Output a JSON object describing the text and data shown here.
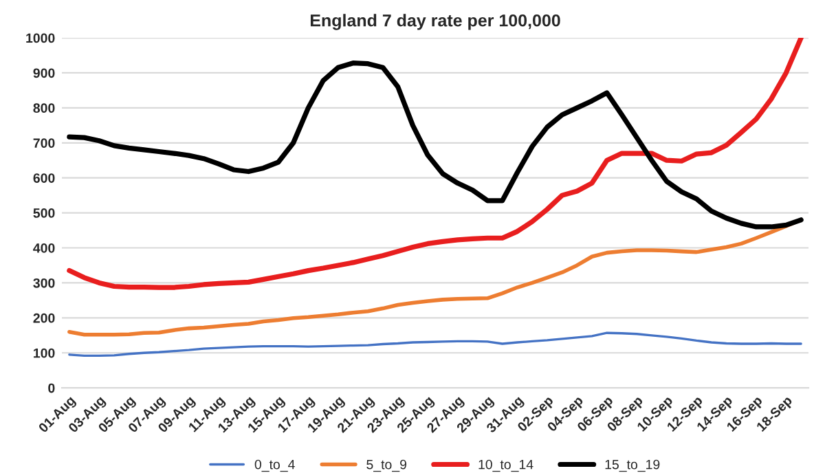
{
  "chart_data": {
    "type": "line",
    "title": "England 7 day rate per 100,000",
    "categories": [
      "01-Aug",
      null,
      "03-Aug",
      null,
      "05-Aug",
      null,
      "07-Aug",
      null,
      "09-Aug",
      null,
      "11-Aug",
      null,
      "13-Aug",
      null,
      "15-Aug",
      null,
      "17-Aug",
      null,
      "19-Aug",
      null,
      "21-Aug",
      null,
      "23-Aug",
      null,
      "25-Aug",
      null,
      "27-Aug",
      null,
      "29-Aug",
      null,
      "31-Aug",
      null,
      "02-Sep",
      null,
      "04-Sep",
      null,
      "06-Sep",
      null,
      "08-Sep",
      null,
      "10-Sep",
      null,
      "12-Sep",
      null,
      "14-Sep",
      null,
      "16-Sep",
      null,
      "18-Sep",
      null
    ],
    "series": [
      {
        "name": "0_to_4",
        "color": "#4472c4",
        "values": [
          95,
          92,
          92,
          93,
          97,
          100,
          102,
          105,
          108,
          112,
          114,
          116,
          118,
          119,
          119,
          119,
          118,
          119,
          120,
          121,
          122,
          125,
          127,
          130,
          131,
          132,
          133,
          133,
          132,
          126,
          130,
          133,
          136,
          140,
          144,
          148,
          157,
          156,
          154,
          150,
          146,
          141,
          135,
          130,
          127,
          126,
          126,
          127,
          126,
          126
        ]
      },
      {
        "name": "5_to_9",
        "color": "#ed7d31",
        "values": [
          160,
          152,
          152,
          152,
          153,
          157,
          158,
          165,
          170,
          172,
          176,
          180,
          183,
          190,
          194,
          199,
          202,
          206,
          210,
          215,
          219,
          227,
          237,
          243,
          248,
          252,
          254,
          255,
          256,
          270,
          287,
          300,
          315,
          330,
          350,
          375,
          386,
          390,
          393,
          393,
          392,
          390,
          388,
          395,
          402,
          412,
          428,
          445,
          462,
          480
        ]
      },
      {
        "name": "10_to_14",
        "color": "#e81e1e",
        "values": [
          335,
          315,
          300,
          290,
          288,
          288,
          287,
          287,
          290,
          295,
          298,
          300,
          302,
          310,
          318,
          326,
          335,
          342,
          350,
          358,
          368,
          378,
          390,
          402,
          412,
          418,
          423,
          426,
          428,
          428,
          447,
          475,
          510,
          550,
          562,
          585,
          650,
          670,
          670,
          670,
          650,
          648,
          668,
          672,
          693,
          730,
          768,
          825,
          900,
          1000
        ]
      },
      {
        "name": "15_to_19",
        "color": "#000000",
        "values": [
          717,
          715,
          706,
          692,
          685,
          680,
          675,
          670,
          664,
          655,
          640,
          623,
          618,
          628,
          645,
          700,
          800,
          878,
          915,
          928,
          926,
          915,
          860,
          750,
          665,
          612,
          585,
          565,
          535,
          535,
          615,
          690,
          745,
          780,
          800,
          820,
          843,
          780,
          715,
          650,
          590,
          560,
          540,
          505,
          485,
          470,
          460,
          460,
          465,
          480
        ]
      }
    ],
    "ylim": [
      0,
      1000
    ],
    "yticks": [
      0,
      100,
      200,
      300,
      400,
      500,
      600,
      700,
      800,
      900,
      1000
    ],
    "grid": "y",
    "legend": "bottom"
  }
}
